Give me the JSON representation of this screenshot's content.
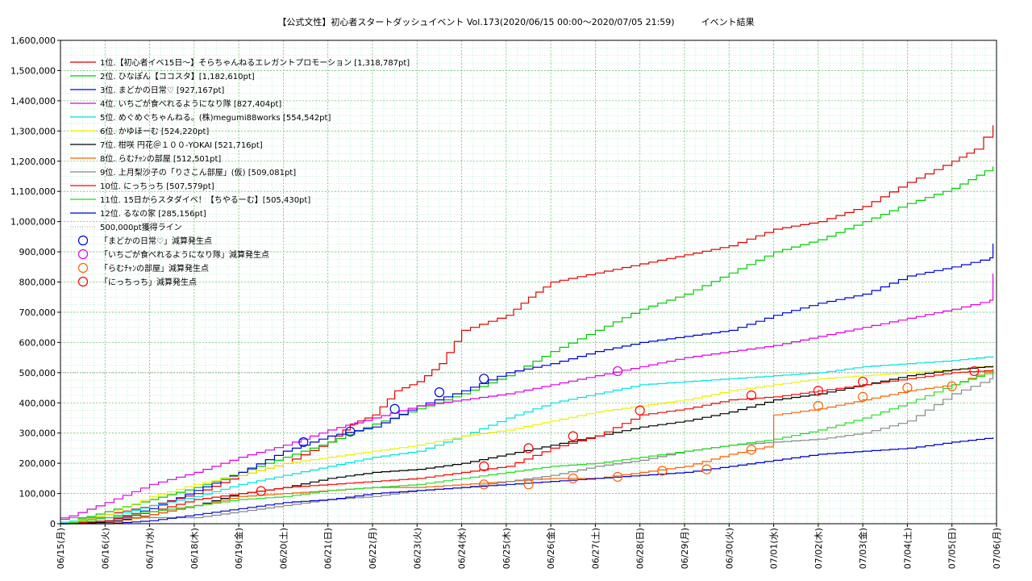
{
  "chart_data": {
    "type": "line",
    "title": "【公式文性】初心者スタートダッシュイベント Vol.173(2020/06/15 00:00〜2020/07/05 21:59)　　　イベント結果",
    "xlabel": "",
    "ylabel": "",
    "ylim": [
      0,
      1600000
    ],
    "yticks": [
      "0",
      "100,000",
      "200,000",
      "300,000",
      "400,000",
      "500,000",
      "600,000",
      "700,000",
      "800,000",
      "900,000",
      "1,000,000",
      "1,100,000",
      "1,200,000",
      "1,300,000",
      "1,400,000",
      "1,500,000",
      "1,600,000"
    ],
    "xticks": [
      "06/15(月)",
      "06/16(火)",
      "06/17(水)",
      "06/18(木)",
      "06/19(金)",
      "06/20(土)",
      "06/21(日)",
      "06/22(月)",
      "06/23(火)",
      "06/24(水)",
      "06/25(木)",
      "06/26(金)",
      "06/27(土)",
      "06/28(日)",
      "06/29(月)",
      "06/30(火)",
      "07/01(水)",
      "07/02(木)",
      "07/03(金)",
      "07/04(土)",
      "07/05(日)",
      "07/06(月)"
    ],
    "x_unit": "days since 06/15 00:00",
    "grid": true,
    "legend_position": "top-left",
    "threshold": {
      "name": "500,000pt獲得ライン",
      "value": 500000,
      "color": "#999999"
    },
    "series": [
      {
        "name": "1位.【初心者イベ15日〜】そらちゃんねるエレガントプロモーション [1,318,787pt]",
        "color": "#e00000",
        "final": 1318787,
        "x": [
          0,
          1,
          2,
          3,
          4,
          5,
          6,
          6.5,
          7,
          7.5,
          8,
          8.5,
          9,
          10,
          10.5,
          11,
          12,
          13,
          14,
          15,
          16,
          17,
          18,
          19,
          20,
          20.5,
          20.92
        ],
        "y": [
          0,
          30000,
          60000,
          100000,
          160000,
          200000,
          270000,
          330000,
          360000,
          440000,
          470000,
          530000,
          640000,
          690000,
          750000,
          800000,
          830000,
          860000,
          890000,
          920000,
          975000,
          1000000,
          1050000,
          1130000,
          1200000,
          1240000,
          1318787
        ]
      },
      {
        "name": "2位. ひなぽん【ココスタ】[1,182,610pt]",
        "color": "#00cc00",
        "final": 1182610,
        "x": [
          0,
          1,
          2,
          3,
          4,
          5,
          6,
          7,
          8,
          9,
          10,
          11,
          12,
          13,
          14,
          15,
          16,
          17,
          18,
          19,
          20,
          20.92
        ],
        "y": [
          0,
          40000,
          80000,
          120000,
          170000,
          220000,
          270000,
          330000,
          380000,
          430000,
          490000,
          570000,
          640000,
          710000,
          760000,
          830000,
          900000,
          940000,
          1000000,
          1060000,
          1110000,
          1182610
        ]
      },
      {
        "name": "3位. まどかの日常♡ [927,167pt]",
        "color": "#0000dd",
        "final": 927167,
        "x": [
          0,
          1,
          2,
          3,
          4,
          5,
          6,
          7,
          8,
          9,
          10,
          11,
          12,
          13,
          14,
          15,
          16,
          17,
          18,
          19,
          20,
          20.85,
          20.92
        ],
        "y": [
          0,
          10000,
          50000,
          110000,
          170000,
          240000,
          290000,
          320000,
          390000,
          440000,
          500000,
          530000,
          570000,
          600000,
          620000,
          640000,
          690000,
          730000,
          760000,
          820000,
          850000,
          880000,
          927167
        ]
      },
      {
        "name": "4位. いちごが食べれるようになり隊 [827,404pt]",
        "color": "#e000e0",
        "final": 827404,
        "x": [
          0,
          1,
          2,
          3,
          4,
          5,
          6,
          7,
          8,
          9,
          10,
          11,
          12,
          13,
          14,
          15,
          16,
          17,
          18,
          19,
          20,
          20.85,
          20.92
        ],
        "y": [
          15000,
          70000,
          130000,
          170000,
          220000,
          260000,
          310000,
          350000,
          390000,
          410000,
          430000,
          460000,
          490000,
          520000,
          550000,
          570000,
          590000,
          620000,
          650000,
          680000,
          710000,
          740000,
          827404
        ]
      },
      {
        "name": "5位. めぐめぐちゃんねる。(株)megumi88works [554,542pt]",
        "color": "#00e0e0",
        "final": 554542,
        "x": [
          0,
          1,
          2,
          3,
          4,
          5,
          6,
          7,
          8,
          9,
          10,
          11,
          12,
          13,
          14,
          15,
          16,
          17,
          18,
          19,
          20,
          20.92
        ],
        "y": [
          5000,
          20000,
          60000,
          90000,
          130000,
          160000,
          190000,
          220000,
          240000,
          290000,
          350000,
          400000,
          430000,
          460000,
          470000,
          480000,
          490000,
          500000,
          520000,
          530000,
          540000,
          554542
        ]
      },
      {
        "name": "6位. かゆほーむ [524,220pt]",
        "color": "#f0f000",
        "final": 524220,
        "x": [
          0,
          1,
          2,
          3,
          4,
          5,
          6,
          7,
          8,
          9,
          10,
          11,
          12,
          13,
          14,
          15,
          16,
          17,
          18,
          19,
          20,
          20.92
        ],
        "y": [
          0,
          30000,
          90000,
          130000,
          160000,
          200000,
          220000,
          240000,
          260000,
          290000,
          310000,
          340000,
          370000,
          390000,
          410000,
          440000,
          460000,
          480000,
          490000,
          500000,
          510000,
          524220
        ]
      },
      {
        "name": "7位. 柑咲 円花＠１００-YOKAI [521,716pt]",
        "color": "#000000",
        "final": 521716,
        "x": [
          0,
          1,
          2,
          3,
          4,
          5,
          6,
          7,
          8,
          9,
          10,
          11,
          12,
          13,
          14,
          15,
          16,
          17,
          18,
          19,
          20,
          20.92
        ],
        "y": [
          0,
          5000,
          30000,
          60000,
          100000,
          120000,
          150000,
          170000,
          180000,
          200000,
          230000,
          260000,
          290000,
          320000,
          340000,
          370000,
          410000,
          430000,
          460000,
          490000,
          510000,
          521716
        ]
      },
      {
        "name": "8位. らむﾁｬﾝの部屋 [512,501pt]",
        "color": "#ff6000",
        "final": 512501,
        "x": [
          0,
          1,
          2,
          3,
          4,
          5,
          6,
          7,
          8,
          9,
          10,
          11,
          12,
          13,
          14,
          15,
          15.99,
          16,
          17,
          18,
          19,
          20,
          20.92
        ],
        "y": [
          0,
          0,
          30000,
          60000,
          90000,
          100000,
          110000,
          120000,
          120000,
          130000,
          140000,
          150000,
          150000,
          170000,
          190000,
          230000,
          260000,
          360000,
          380000,
          410000,
          440000,
          460000,
          512501
        ]
      },
      {
        "name": "9位. 上月梨沙子の「りさこん部屋」(仮) [509,081pt]",
        "color": "#888888",
        "final": 509081,
        "x": [
          0,
          1,
          2,
          3,
          4,
          5,
          6,
          7,
          8,
          9,
          10,
          11,
          12,
          13,
          14,
          15,
          16,
          17,
          18,
          19,
          20,
          20.85,
          20.92
        ],
        "y": [
          20000,
          20000,
          20000,
          20000,
          40000,
          60000,
          80000,
          90000,
          110000,
          120000,
          140000,
          160000,
          190000,
          210000,
          240000,
          260000,
          270000,
          280000,
          300000,
          340000,
          430000,
          480000,
          509081
        ]
      },
      {
        "name": "10位. にっちっち [507,579pt]",
        "color": "#ff0000",
        "final": 507579,
        "x": [
          0,
          1,
          2,
          3,
          4,
          5,
          6,
          7,
          8,
          9,
          10,
          11,
          12,
          13,
          14,
          15,
          16,
          17,
          18,
          19,
          20,
          20.92
        ],
        "y": [
          0,
          10000,
          40000,
          80000,
          100000,
          120000,
          130000,
          140000,
          150000,
          170000,
          190000,
          250000,
          290000,
          360000,
          380000,
          410000,
          420000,
          440000,
          460000,
          480000,
          500000,
          507579
        ]
      },
      {
        "name": "11位. 15日からスタダイベ！【ちやるーむ】[505,430pt]",
        "color": "#22dd22",
        "final": 505430,
        "x": [
          0,
          1,
          2,
          3,
          4,
          5,
          6,
          7,
          8,
          9,
          10,
          11,
          12,
          13,
          14,
          15,
          16,
          17,
          18,
          19,
          20,
          20.92
        ],
        "y": [
          0,
          20000,
          40000,
          60000,
          80000,
          90000,
          110000,
          120000,
          130000,
          150000,
          170000,
          190000,
          200000,
          220000,
          240000,
          260000,
          280000,
          310000,
          350000,
          400000,
          460000,
          505430
        ]
      },
      {
        "name": "12位. るなの家 [285,156pt]",
        "color": "#0000cc",
        "final": 285156,
        "x": [
          0,
          1,
          2,
          3,
          4,
          5,
          6,
          7,
          8,
          9,
          10,
          11,
          12,
          13,
          14,
          15,
          16,
          17,
          18,
          19,
          20,
          20.92
        ],
        "y": [
          0,
          0,
          10000,
          30000,
          50000,
          70000,
          80000,
          100000,
          110000,
          120000,
          130000,
          140000,
          150000,
          160000,
          170000,
          190000,
          210000,
          230000,
          240000,
          250000,
          270000,
          285156
        ]
      }
    ],
    "drop_markers": [
      {
        "name": "「まどかの日常♡」減算発生点",
        "color": "#0000dd",
        "points": [
          [
            5.45,
            270000
          ],
          [
            6.5,
            305000
          ],
          [
            7.5,
            380000
          ],
          [
            8.5,
            435000
          ],
          [
            9.5,
            480000
          ]
        ]
      },
      {
        "name": "「いちごが食べれるようになり隊」減算発生点",
        "color": "#e000e0",
        "points": [
          [
            12.5,
            505000
          ]
        ]
      },
      {
        "name": "「らむﾁｬﾝの部屋」減算発生点",
        "color": "#ff6000",
        "points": [
          [
            9.5,
            130000
          ],
          [
            10.5,
            130000
          ],
          [
            11.5,
            150000
          ],
          [
            12.5,
            155000
          ],
          [
            13.5,
            175000
          ],
          [
            14.5,
            180000
          ],
          [
            15.5,
            245000
          ],
          [
            17,
            390000
          ],
          [
            18,
            420000
          ],
          [
            19,
            450000
          ],
          [
            20,
            455000
          ]
        ]
      },
      {
        "name": "「にっちっち」減算発生点",
        "color": "#ff0000",
        "points": [
          [
            4.5,
            108000
          ],
          [
            9.5,
            190000
          ],
          [
            10.5,
            250000
          ],
          [
            11.5,
            290000
          ],
          [
            13,
            375000
          ],
          [
            15.5,
            425000
          ],
          [
            17,
            440000
          ],
          [
            18,
            470000
          ],
          [
            20.5,
            505000
          ]
        ]
      }
    ]
  }
}
